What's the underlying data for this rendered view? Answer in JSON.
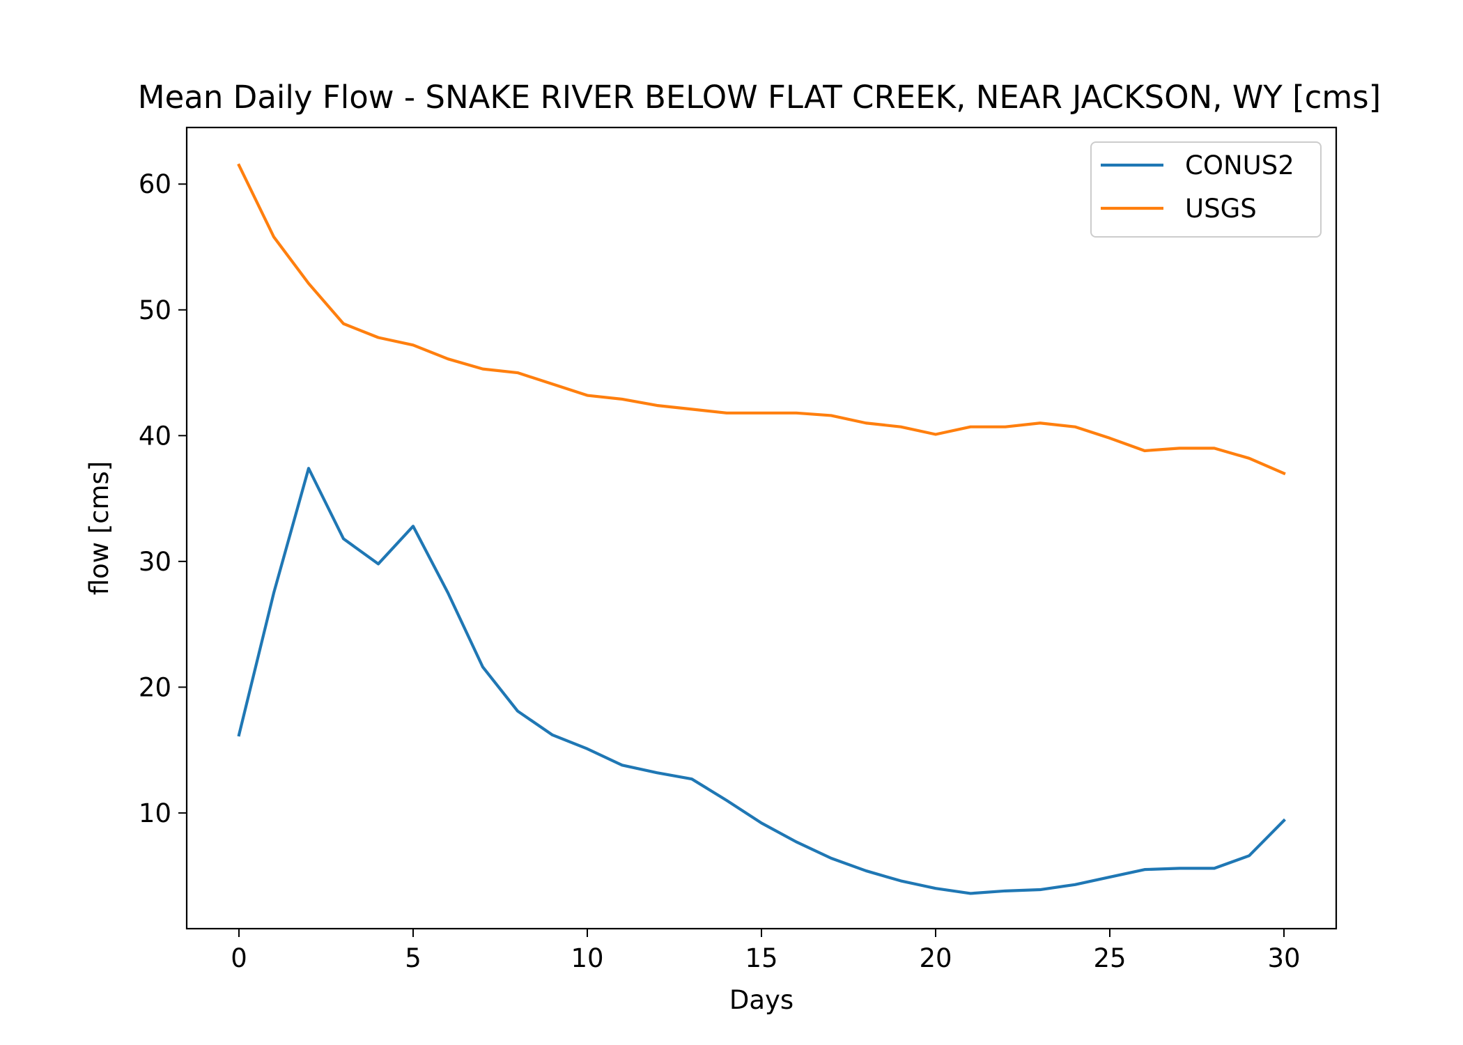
{
  "chart_data": {
    "type": "line",
    "title": "Mean Daily Flow - SNAKE RIVER BELOW FLAT CREEK, NEAR JACKSON, WY [cms]",
    "xlabel": "Days",
    "ylabel": "flow [cms]",
    "xlim": [
      -1.5,
      31.5
    ],
    "ylim": [
      0.8,
      64.5
    ],
    "xticks": [
      0,
      5,
      10,
      15,
      20,
      25,
      30
    ],
    "yticks": [
      10,
      20,
      30,
      40,
      50,
      60
    ],
    "grid": false,
    "legend": "top-right",
    "x": [
      0,
      1,
      2,
      3,
      4,
      5,
      6,
      7,
      8,
      9,
      10,
      11,
      12,
      13,
      14,
      15,
      16,
      17,
      18,
      19,
      20,
      21,
      22,
      23,
      24,
      25,
      26,
      27,
      28,
      29,
      30
    ],
    "series": [
      {
        "name": "CONUS2",
        "color": "#1f77b4",
        "values": [
          16.2,
          27.5,
          37.4,
          31.8,
          29.8,
          32.8,
          27.5,
          21.6,
          18.1,
          16.2,
          15.1,
          13.8,
          13.2,
          12.7,
          11.0,
          9.2,
          7.7,
          6.4,
          5.4,
          4.6,
          4.0,
          3.6,
          3.8,
          3.9,
          4.3,
          4.9,
          5.5,
          5.6,
          5.6,
          6.6,
          9.4
        ]
      },
      {
        "name": "USGS",
        "color": "#ff7f0e",
        "values": [
          61.5,
          55.8,
          52.1,
          48.9,
          47.8,
          47.2,
          46.1,
          45.3,
          45.0,
          44.1,
          43.2,
          42.9,
          42.4,
          42.1,
          41.8,
          41.8,
          41.8,
          41.6,
          41.0,
          40.7,
          40.1,
          40.7,
          40.7,
          41.0,
          40.7,
          39.8,
          38.8,
          39.0,
          39.0,
          38.2,
          37.0
        ]
      }
    ]
  }
}
